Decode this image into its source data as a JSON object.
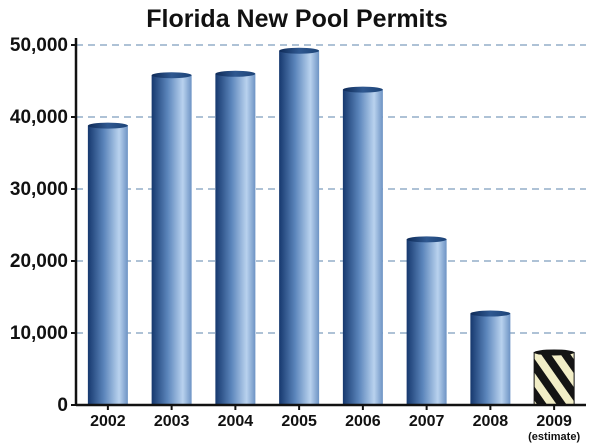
{
  "chart_data": {
    "type": "bar",
    "title": "Florida New Pool Permits",
    "xlabel": "",
    "ylabel": "",
    "categories": [
      "2002",
      "2003",
      "2004",
      "2005",
      "2006",
      "2007",
      "2008",
      "2009"
    ],
    "category_notes": [
      "",
      "",
      "",
      "",
      "",
      "",
      "",
      "(estimate)"
    ],
    "values": [
      38800,
      45800,
      46000,
      49200,
      43800,
      23000,
      12700,
      7300
    ],
    "estimated": [
      false,
      false,
      false,
      false,
      false,
      false,
      false,
      true
    ],
    "yticks": [
      "0",
      "10,000",
      "20,000",
      "30,000",
      "40,000",
      "50,000"
    ],
    "ylim": [
      0,
      50000
    ],
    "grid": "dashed horizontal",
    "colors": {
      "bar_dark": "#16386e",
      "bar_light": "#b9d2ee",
      "grid": "#5c86ad",
      "axis": "#111111",
      "estimate_stripe_dark": "#141414",
      "estimate_stripe_light": "#f2eec7"
    }
  }
}
